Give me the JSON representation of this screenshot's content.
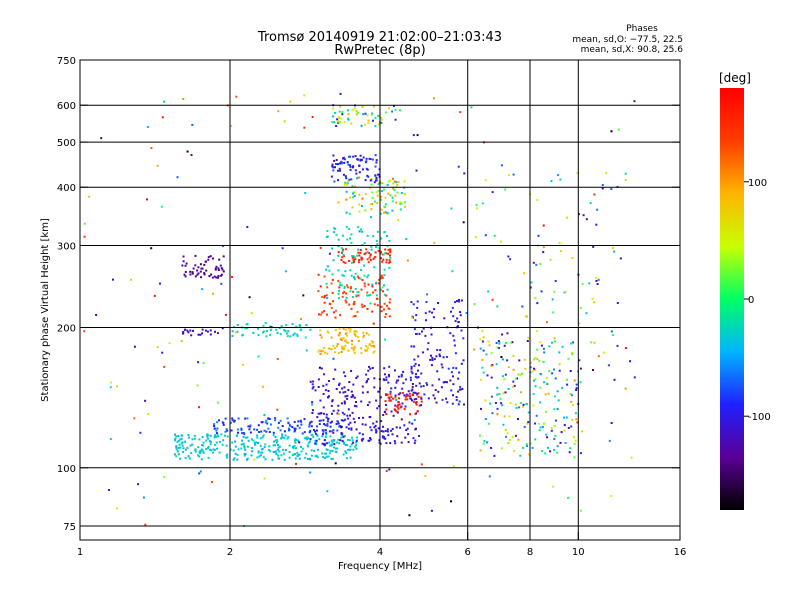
{
  "chart_data": {
    "type": "scatter",
    "title": "Tromsø 20140919 21:02:00–21:03:43",
    "subtitle": "RwPretec (8p)",
    "xlabel": "Frequency [MHz]",
    "ylabel": "Stationary phase Virtual Height [km]",
    "x_scale": "log",
    "y_scale": "log",
    "xlim": [
      1,
      16
    ],
    "ylim": [
      70,
      750
    ],
    "x_ticks": [
      1,
      2,
      4,
      6,
      8,
      10,
      16
    ],
    "y_ticks": [
      75,
      100,
      200,
      300,
      400,
      500,
      600,
      750
    ],
    "grid": true,
    "info": {
      "heading": "Phases",
      "line1": "mean, sd,O: −77.5, 22.5",
      "line2": "mean, sd,X:  90.8, 25.6"
    },
    "colorbar": {
      "label": "[deg]",
      "range": [
        -180,
        180
      ],
      "ticks": [
        100,
        0,
        -100
      ],
      "colors": [
        "#000000",
        "#5a0096",
        "#2020ff",
        "#00b4ff",
        "#00ff64",
        "#c8ff00",
        "#ffb400",
        "#ff3c00",
        "#ff0000"
      ]
    },
    "clusters": [
      {
        "x": [
          1.55,
          3.6
        ],
        "y": [
          104,
          118
        ],
        "phase": [
          -45,
          -20
        ],
        "n": 320
      },
      {
        "x": [
          1.85,
          3.4
        ],
        "y": [
          118,
          128
        ],
        "phase": [
          -100,
          -55
        ],
        "n": 120
      },
      {
        "x": [
          2.9,
          4.8
        ],
        "y": [
          112,
          165
        ],
        "phase": [
          -125,
          -90
        ],
        "n": 260
      },
      {
        "x": [
          3.0,
          3.9
        ],
        "y": [
          175,
          200
        ],
        "phase": [
          60,
          110
        ],
        "n": 90
      },
      {
        "x": [
          3.0,
          4.2
        ],
        "y": [
          210,
          260
        ],
        "phase": [
          120,
          160
        ],
        "n": 90
      },
      {
        "x": [
          3.3,
          4.2
        ],
        "y": [
          275,
          295
        ],
        "phase": [
          140,
          165
        ],
        "n": 60
      },
      {
        "x": [
          3.1,
          4.2
        ],
        "y": [
          230,
          330
        ],
        "phase": [
          -40,
          -10
        ],
        "n": 100
      },
      {
        "x": [
          3.4,
          4.5
        ],
        "y": [
          350,
          420
        ],
        "phase": [
          -50,
          120
        ],
        "n": 90
      },
      {
        "x": [
          3.2,
          4.0
        ],
        "y": [
          410,
          470
        ],
        "phase": [
          -120,
          -70
        ],
        "n": 80
      },
      {
        "x": [
          3.2,
          4.4
        ],
        "y": [
          540,
          600
        ],
        "phase": [
          -110,
          90
        ],
        "n": 60
      },
      {
        "x": [
          4.1,
          4.9
        ],
        "y": [
          130,
          145
        ],
        "phase": [
          150,
          175
        ],
        "n": 50
      },
      {
        "x": [
          4.6,
          5.9
        ],
        "y": [
          135,
          230
        ],
        "phase": [
          -130,
          -80
        ],
        "n": 140
      },
      {
        "x": [
          2.0,
          2.9
        ],
        "y": [
          190,
          205
        ],
        "phase": [
          -40,
          -10
        ],
        "n": 50
      },
      {
        "x": [
          1.6,
          1.95
        ],
        "y": [
          255,
          285
        ],
        "phase": [
          -150,
          -120
        ],
        "n": 55
      },
      {
        "x": [
          1.6,
          1.95
        ],
        "y": [
          192,
          198
        ],
        "phase": [
          -125,
          -105
        ],
        "n": 20
      },
      {
        "x": [
          6.3,
          10.2
        ],
        "y": [
          105,
          190
        ],
        "phase": [
          -140,
          110
        ],
        "n": 200
      },
      {
        "x": [
          6.2,
          12.5
        ],
        "y": [
          160,
          430
        ],
        "phase": [
          -150,
          90
        ],
        "n": 90
      },
      {
        "x": [
          1.0,
          13.0
        ],
        "y": [
          75,
          650
        ],
        "phase": [
          -180,
          180
        ],
        "n": 200
      }
    ]
  }
}
